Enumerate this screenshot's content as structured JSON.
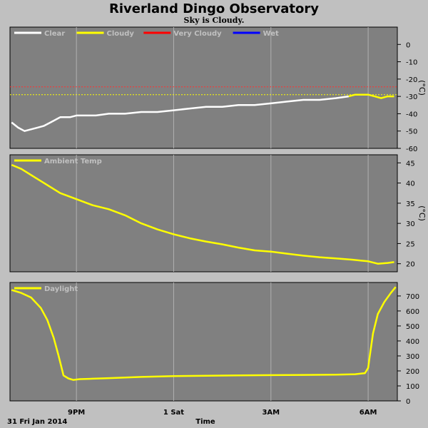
{
  "header": {
    "title": "Riverland Dingo Observatory",
    "subtitle": "Sky is Cloudy."
  },
  "x_axis": {
    "ticks": [
      {
        "t": 21,
        "label": "9PM"
      },
      {
        "t": 24,
        "label": "1 Sat"
      },
      {
        "t": 27,
        "label": "3AM"
      },
      {
        "t": 30,
        "label": "6AM"
      }
    ],
    "date_label": "31 Fri Jan 2014",
    "label": "Time",
    "range": [
      18.95,
      30.9
    ]
  },
  "chart_data": [
    {
      "type": "line",
      "name": "sky",
      "unit": "(°C)",
      "ylim": [
        -60,
        10
      ],
      "yticks": [
        0,
        -10,
        -20,
        -30,
        -40,
        -50,
        -60
      ],
      "legend": [
        {
          "label": "Clear",
          "color": "#ffffff"
        },
        {
          "label": "Cloudy",
          "color": "#ffff00"
        },
        {
          "label": "Very Cloudy",
          "color": "#ff0000"
        },
        {
          "label": "Wet",
          "color": "#0000ff"
        }
      ],
      "thresholds": [
        {
          "value": -24.5,
          "color": "#ff3030"
        },
        {
          "value": -29,
          "color": "#ffff00"
        }
      ],
      "series": [
        {
          "label": "Clear",
          "color": "#ffffff",
          "x": [
            19.0,
            19.2,
            19.4,
            19.6,
            19.8,
            20.0,
            20.2,
            20.5,
            20.8,
            21.0,
            21.3,
            21.6,
            22.0,
            22.5,
            23.0,
            23.5,
            24.0,
            24.5,
            25.0,
            25.5,
            26.0,
            26.5,
            27.0,
            27.5,
            28.0,
            28.5,
            29.0,
            29.4
          ],
          "y": [
            -45,
            -48,
            -50,
            -49,
            -48,
            -47,
            -45,
            -42,
            -42,
            -41,
            -41,
            -41,
            -40,
            -40,
            -39,
            -39,
            -38,
            -37,
            -36,
            -36,
            -35,
            -35,
            -34,
            -33,
            -32,
            -32,
            -31,
            -30
          ]
        },
        {
          "label": "Cloudy",
          "color": "#ffff00",
          "x": [
            29.4,
            29.6,
            29.8,
            30.0,
            30.2,
            30.4,
            30.6,
            30.8
          ],
          "y": [
            -30,
            -29,
            -29,
            -29,
            -30,
            -31,
            -30,
            -30
          ]
        }
      ]
    },
    {
      "type": "line",
      "name": "ambient",
      "unit": "(°C)",
      "ylim": [
        18,
        47
      ],
      "yticks": [
        20,
        25,
        30,
        35,
        40,
        45
      ],
      "legend": [
        {
          "label": "Ambient Temp",
          "color": "#ffff00"
        }
      ],
      "series": [
        {
          "label": "Ambient Temp",
          "color": "#ffff00",
          "x": [
            19.0,
            19.3,
            19.6,
            20.0,
            20.5,
            21.0,
            21.5,
            22.0,
            22.5,
            23.0,
            23.5,
            24.0,
            24.5,
            25.0,
            25.5,
            26.0,
            26.5,
            27.0,
            27.5,
            28.0,
            28.5,
            29.0,
            29.5,
            30.0,
            30.3,
            30.6,
            30.8
          ],
          "y": [
            44.5,
            43.5,
            42,
            40,
            37.5,
            36,
            34.5,
            33.5,
            32,
            30,
            28.5,
            27.3,
            26.3,
            25.5,
            24.8,
            24,
            23.3,
            23,
            22.5,
            22,
            21.6,
            21.3,
            21,
            20.6,
            20,
            20.2,
            20.4
          ]
        }
      ]
    },
    {
      "type": "line",
      "name": "daylight",
      "unit": "",
      "ylim": [
        0,
        790
      ],
      "yticks": [
        0,
        100,
        200,
        300,
        400,
        500,
        600,
        700
      ],
      "legend": [
        {
          "label": "Daylight",
          "color": "#ffff00"
        }
      ],
      "series": [
        {
          "label": "Daylight",
          "color": "#ffff00",
          "x": [
            19.0,
            19.3,
            19.6,
            19.9,
            20.1,
            20.3,
            20.45,
            20.6,
            20.75,
            20.9,
            21.1,
            21.5,
            22.0,
            23.0,
            24.0,
            25.0,
            26.0,
            27.0,
            28.0,
            29.0,
            29.6,
            29.9,
            30.0,
            30.05,
            30.15,
            30.3,
            30.5,
            30.7,
            30.85
          ],
          "y": [
            740,
            720,
            690,
            620,
            540,
            420,
            300,
            170,
            150,
            140,
            145,
            148,
            152,
            160,
            165,
            168,
            170,
            172,
            173,
            175,
            178,
            185,
            220,
            300,
            450,
            580,
            660,
            720,
            760
          ]
        }
      ]
    }
  ]
}
